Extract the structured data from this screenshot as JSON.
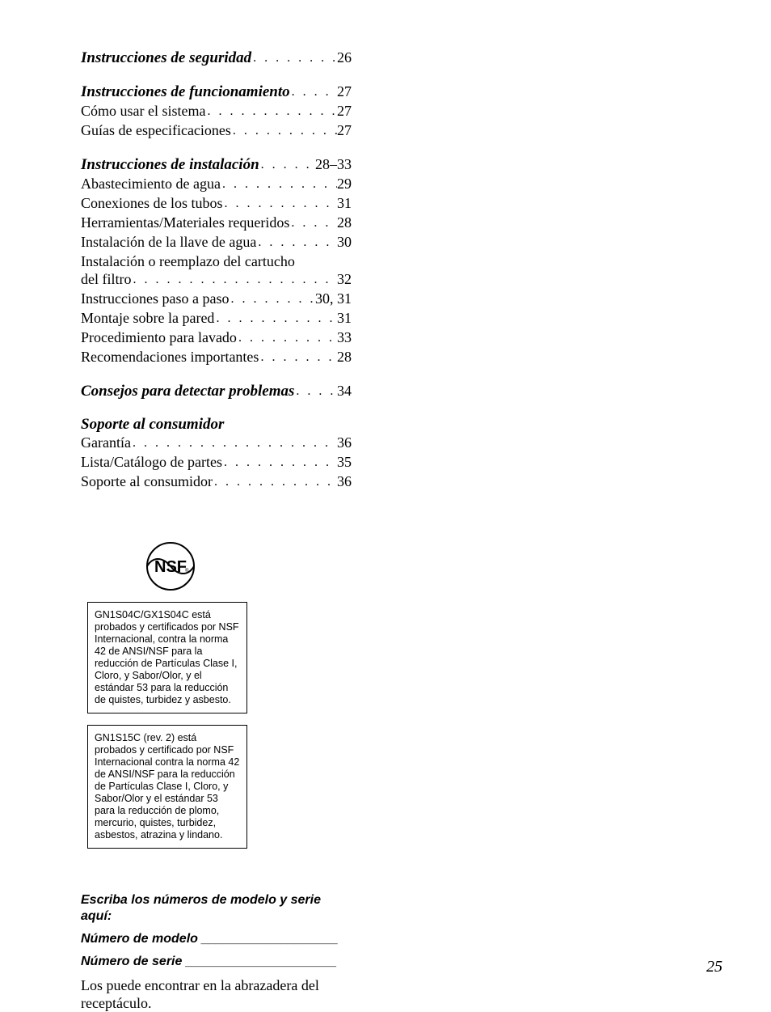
{
  "toc": {
    "groups": [
      {
        "head": {
          "label": "Instrucciones de seguridad",
          "page": "26"
        },
        "items": []
      },
      {
        "head": {
          "label": "Instrucciones de funcionamiento",
          "page": "27"
        },
        "items": [
          {
            "label": "Cómo usar el sistema",
            "page": "27"
          },
          {
            "label": "Guías de especificaciones",
            "page": "27"
          }
        ]
      },
      {
        "head": {
          "label": "Instrucciones de instalación",
          "page": "28–33"
        },
        "items": [
          {
            "label": "Abastecimiento de agua",
            "page": "29"
          },
          {
            "label": "Conexiones de los tubos",
            "page": "31"
          },
          {
            "label": "Herramientas/Materiales requeridos",
            "page": "28"
          },
          {
            "label": "Instalación de la llave de agua",
            "page": "30"
          },
          {
            "label": "Instalación o reemplazo del cartucho",
            "wrapNext": true
          },
          {
            "label": "del filtro",
            "page": "32"
          },
          {
            "label": "Instrucciones paso a paso",
            "page": "30, 31"
          },
          {
            "label": "Montaje sobre la pared",
            "page": "31"
          },
          {
            "label": "Procedimiento para lavado",
            "page": "33"
          },
          {
            "label": "Recomendaciones importantes",
            "page": "28"
          }
        ]
      },
      {
        "head": {
          "label": "Consejos para detectar problemas",
          "page": "34"
        },
        "items": []
      },
      {
        "head": {
          "label": "Soporte al consumidor"
        },
        "items": [
          {
            "label": "Garantía",
            "page": "36"
          },
          {
            "label": "Lista/Catálogo de partes",
            "page": "35"
          },
          {
            "label": "Soporte al consumidor",
            "page": "36"
          }
        ]
      }
    ]
  },
  "nsf": {
    "logoText": "NSF",
    "cert1": "GN1S04C/GX1S04C está probados y certificados por NSF Internacional, contra la norma 42 de ANSI/NSF para la reducción de Partículas Clase I, Cloro, y Sabor/Olor, y el estándar 53 para la reducción de quistes, turbidez y asbesto.",
    "cert2": "GN1S15C (rev. 2) está probados y certificado por NSF Internacional contra la norma 42 de ANSI/NSF para la reducción de Partículas Clase I, Cloro, y Sabor/Olor y el estándar 53 para la reducción de plomo, mercurio, quistes, turbidez, asbestos, atrazina y lindano."
  },
  "modelSection": {
    "heading": "Escriba los números de modelo y serie aquí:",
    "modelLabel": "Número de modelo",
    "serialLabel": "Número de serie",
    "modelUnderline": "___________________",
    "serialUnderline": "_____________________",
    "note": "Los puede encontrar en la abrazadera del receptáculo."
  },
  "pageNumber": "25",
  "colors": {
    "text": "#000000",
    "background": "#ffffff",
    "border": "#000000"
  }
}
